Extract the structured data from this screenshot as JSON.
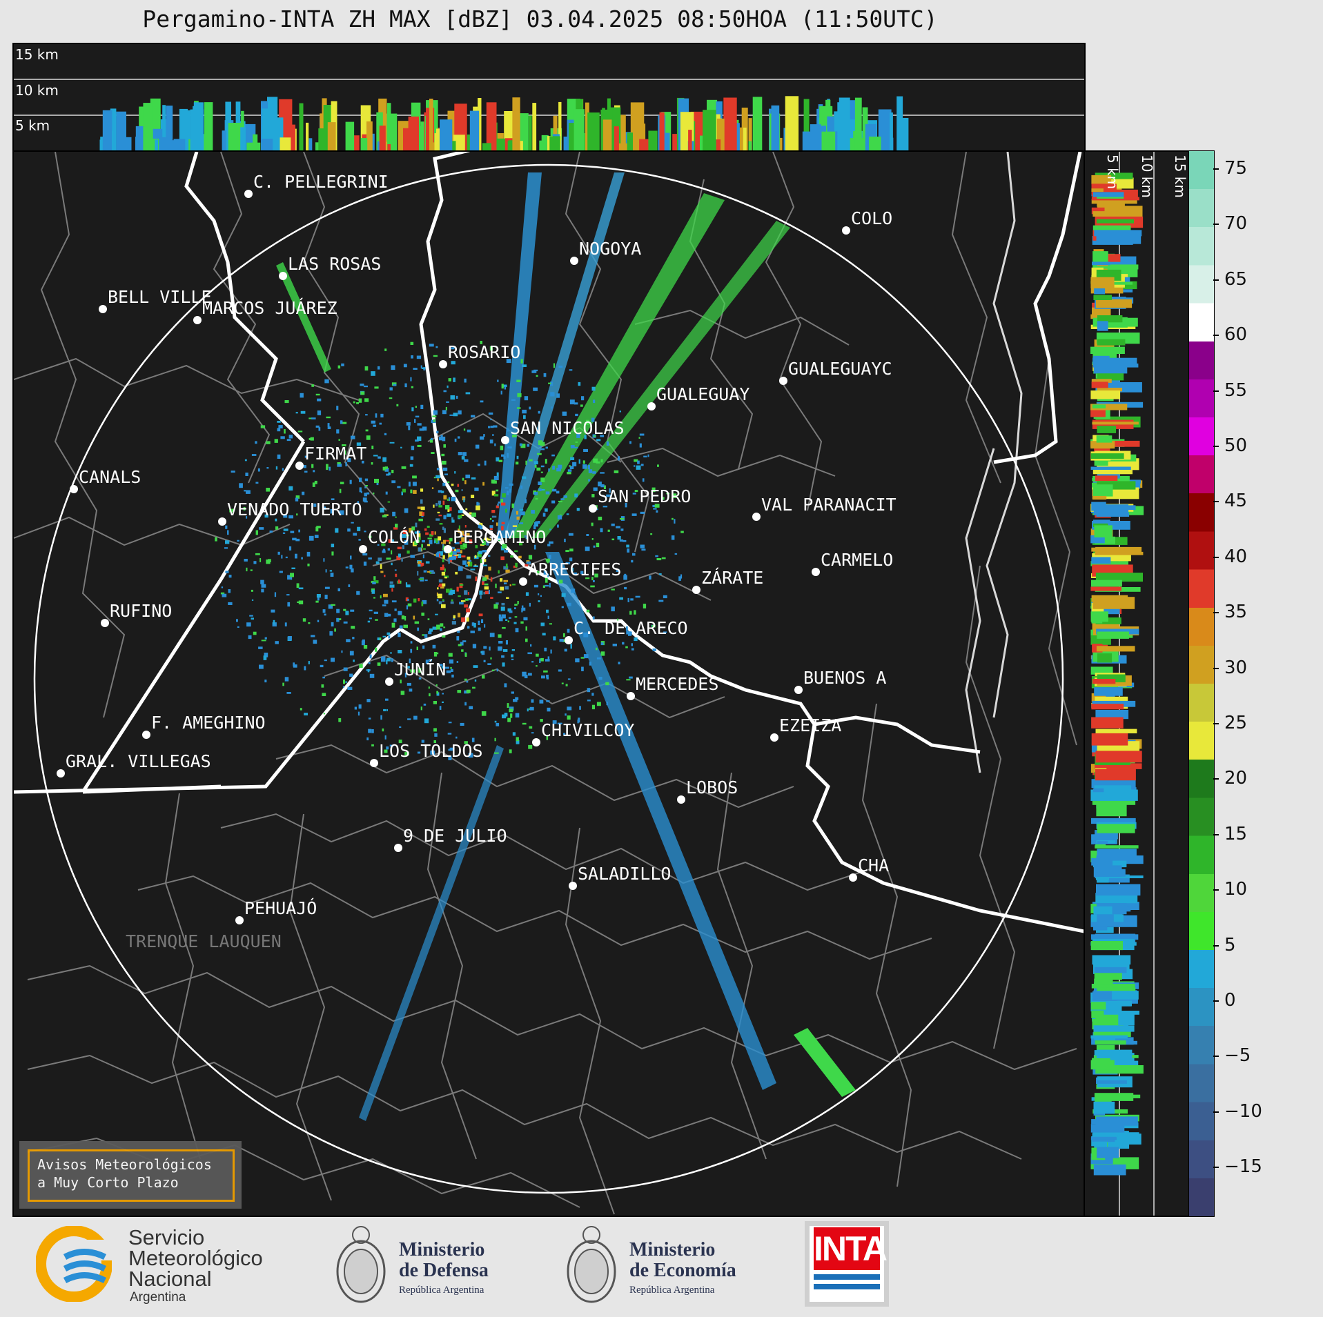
{
  "title": "Pergamino-INTA ZH MAX [dBZ] 03.04.2025 08:50HOA (11:50UTC)",
  "top_strip": {
    "height_labels": [
      "15 km",
      "10 km",
      "5 km"
    ]
  },
  "side_strip": {
    "height_labels": [
      "5 km",
      "10 km",
      "15 km"
    ]
  },
  "colorbar": {
    "unit": "dBZ",
    "ticks": [
      "75",
      "70",
      "65",
      "60",
      "55",
      "50",
      "45",
      "40",
      "35",
      "30",
      "25",
      "20",
      "15",
      "10",
      "5",
      "0",
      "−5",
      "−10",
      "−15"
    ],
    "colors": [
      "#3a3f6e",
      "#3d4f82",
      "#3b5f92",
      "#3a6fa0",
      "#3680b0",
      "#2c93c2",
      "#22a8d8",
      "#3fe62b",
      "#4fd63a",
      "#2fb52a",
      "#288f22",
      "#1e7a1c",
      "#e8e83a",
      "#c8c838",
      "#d0a020",
      "#d98a1a",
      "#e03a2a",
      "#b01010",
      "#8a0000",
      "#c0006a",
      "#e000e0",
      "#b000b0",
      "#8a008a",
      "#ffffff",
      "#d8f0e8",
      "#b8e8d8",
      "#9adfc8",
      "#7ad6b8"
    ]
  },
  "cities": [
    {
      "name": "C. PELLEGRINI"
    },
    {
      "name": "LAS ROSAS"
    },
    {
      "name": "NOGOYA"
    },
    {
      "name": "BELL VILLE"
    },
    {
      "name": "MARCOS JUÁREZ"
    },
    {
      "name": "COLO"
    },
    {
      "name": "ROSARIO"
    },
    {
      "name": "GUALEGUAYC"
    },
    {
      "name": "GUALEGUAY"
    },
    {
      "name": "SAN NICOLAS"
    },
    {
      "name": "FIRMAT"
    },
    {
      "name": "CANALS"
    },
    {
      "name": "SAN PEDRO"
    },
    {
      "name": "VENADO TUERTO"
    },
    {
      "name": "VAL PARANACIT"
    },
    {
      "name": "COLÓN"
    },
    {
      "name": "PERGAMINO"
    },
    {
      "name": "CARMELO"
    },
    {
      "name": "ARRECIFES"
    },
    {
      "name": "ZÁRATE"
    },
    {
      "name": "RUFINO"
    },
    {
      "name": "C. DE ARECO"
    },
    {
      "name": "JUNÍN"
    },
    {
      "name": "MERCEDES"
    },
    {
      "name": "BUENOS A"
    },
    {
      "name": "F. AMEGHINO"
    },
    {
      "name": "EZEIZA"
    },
    {
      "name": "CHIVILCOY"
    },
    {
      "name": "GRAL. VILLEGAS"
    },
    {
      "name": "LOS TOLDOS"
    },
    {
      "name": "LOBOS"
    },
    {
      "name": "9 DE JULIO"
    },
    {
      "name": "SALADILLO"
    },
    {
      "name": "CHA"
    },
    {
      "name": "PEHUAJÓ"
    },
    {
      "name": "TRENQUE LAUQUEN"
    }
  ],
  "notice": {
    "line1": "Avisos Meteorológicos",
    "line2": "a Muy Corto Plazo"
  },
  "logos": {
    "smn": {
      "line1": "Servicio",
      "line2": "Meteorológico",
      "line3": "Nacional",
      "line4": "Argentina"
    },
    "defensa": {
      "line1": "Ministerio",
      "line2": "de Defensa",
      "line3": "República Argentina"
    },
    "economia": {
      "line1": "Ministerio",
      "line2": "de Economía",
      "line3": "República Argentina"
    },
    "inta": {
      "text": "INTA"
    }
  }
}
